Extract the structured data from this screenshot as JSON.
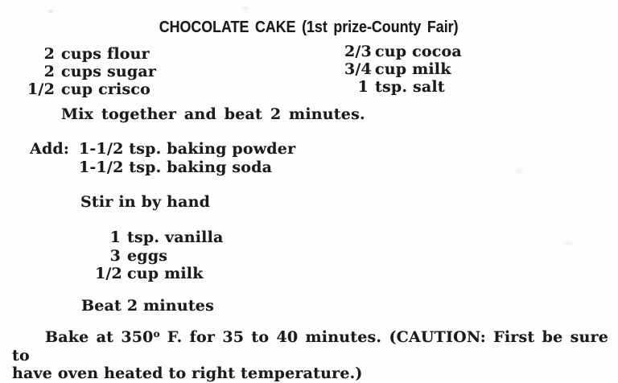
{
  "document": {
    "title": "CHOCOLATE CAKE (1st prize-County Fair)",
    "ingredients_left": [
      {
        "qty": "2",
        "item": "cups flour"
      },
      {
        "qty": "2",
        "item": "cups sugar"
      },
      {
        "qty": "1/2",
        "item": "cup crisco"
      }
    ],
    "ingredients_right": [
      {
        "qty": "2/3",
        "item": "cup cocoa"
      },
      {
        "qty": "3/4",
        "item": "cup milk"
      },
      {
        "qty": "1",
        "item": "tsp. salt"
      }
    ],
    "mix_step": "Mix together and beat 2 minutes.",
    "add_label": "Add:",
    "add_items": [
      "1-1/2 tsp. baking powder",
      "1-1/2 tsp. baking soda"
    ],
    "stir_step": "Stir in by hand",
    "stir_items": [
      {
        "qty": "1",
        "item": "tsp. vanilla"
      },
      {
        "qty": "3",
        "item": "eggs"
      },
      {
        "qty": "1/2",
        "item": "cup milk"
      }
    ],
    "beat_step": "Beat 2 minutes",
    "bake": {
      "line1_pre": "Bake at 350",
      "degree_mark": "o",
      "line1_post": " F. for 35 to 40 minutes. (CAUTION: First be sure to",
      "line2": "have oven heated to right temperature.)"
    }
  }
}
